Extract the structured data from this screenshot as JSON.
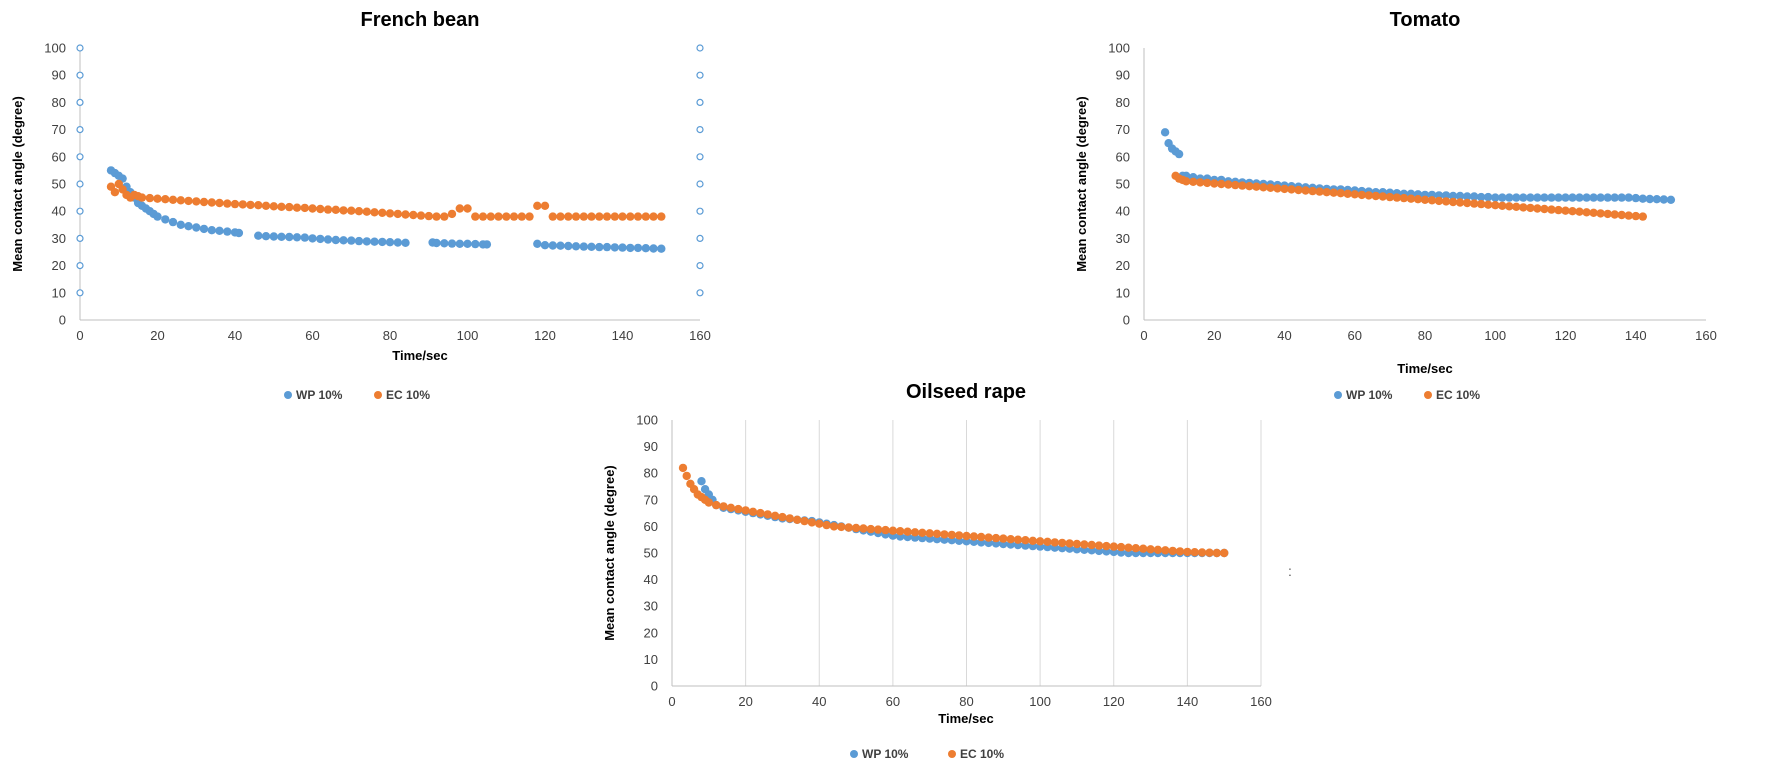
{
  "colors": {
    "wp": "#5b9bd5",
    "ec": "#ed7d31",
    "grid": "#d9d9d9",
    "axis": "#bfbfbf",
    "text": "#404040"
  },
  "stray_mark": ":",
  "chart_data": [
    {
      "type": "scatter",
      "title": "French bean",
      "xlabel": "Time/sec",
      "ylabel": "Mean contact angle (degree)",
      "xlim": [
        0,
        160
      ],
      "ylim": [
        0,
        100
      ],
      "x_ticks": [
        0,
        20,
        40,
        60,
        80,
        100,
        120,
        140,
        160
      ],
      "y_ticks": [
        0,
        10,
        20,
        30,
        40,
        50,
        60,
        70,
        80,
        90,
        100
      ],
      "grid": "none",
      "secondary_axis_markers": true,
      "legend": "bottom",
      "series": [
        {
          "name": "WP 10%",
          "color": "#5b9bd5",
          "x": [
            8,
            9,
            10,
            11,
            12,
            13,
            14,
            15,
            16,
            17,
            18,
            19,
            20,
            22,
            24,
            26,
            28,
            30,
            32,
            34,
            36,
            38,
            40,
            41,
            46,
            48,
            50,
            52,
            54,
            56,
            58,
            60,
            62,
            64,
            66,
            68,
            70,
            72,
            74,
            76,
            78,
            80,
            82,
            84,
            91,
            92,
            94,
            96,
            98,
            100,
            102,
            104,
            105,
            118,
            120,
            122,
            124,
            126,
            128,
            130,
            132,
            134,
            136,
            138,
            140,
            142,
            144,
            146,
            148,
            150
          ],
          "y": [
            55,
            54,
            53,
            52,
            49,
            47,
            45,
            43,
            42,
            41,
            40,
            39,
            38,
            37,
            36,
            35,
            34.5,
            34,
            33.5,
            33,
            32.8,
            32.5,
            32.2,
            32,
            31,
            30.8,
            30.7,
            30.6,
            30.5,
            30.4,
            30.3,
            30,
            29.8,
            29.6,
            29.4,
            29.3,
            29.2,
            29,
            28.9,
            28.8,
            28.7,
            28.6,
            28.5,
            28.4,
            28.5,
            28.3,
            28.2,
            28.1,
            28,
            28,
            27.9,
            27.8,
            27.8,
            28,
            27.5,
            27.4,
            27.3,
            27.2,
            27.1,
            27,
            26.9,
            26.8,
            26.8,
            26.7,
            26.6,
            26.5,
            26.5,
            26.4,
            26.3,
            26.2
          ]
        },
        {
          "name": "EC 10%",
          "color": "#ed7d31",
          "x": [
            8,
            9,
            10,
            11,
            12,
            13,
            14,
            15,
            16,
            18,
            20,
            22,
            24,
            26,
            28,
            30,
            32,
            34,
            36,
            38,
            40,
            42,
            44,
            46,
            48,
            50,
            52,
            54,
            56,
            58,
            60,
            62,
            64,
            66,
            68,
            70,
            72,
            74,
            76,
            78,
            80,
            82,
            84,
            86,
            88,
            90,
            92,
            94,
            96,
            98,
            100,
            102,
            104,
            106,
            108,
            110,
            112,
            114,
            116,
            118,
            120,
            122,
            124,
            126,
            128,
            130,
            132,
            134,
            136,
            138,
            140,
            142,
            144,
            146,
            148,
            150
          ],
          "y": [
            49,
            47,
            50,
            48,
            46,
            45,
            46,
            45.5,
            45,
            44.8,
            44.6,
            44.4,
            44.2,
            44,
            43.8,
            43.6,
            43.4,
            43.2,
            43,
            42.8,
            42.6,
            42.5,
            42.3,
            42.2,
            42,
            41.8,
            41.6,
            41.5,
            41.3,
            41.2,
            41,
            40.8,
            40.6,
            40.5,
            40.3,
            40.2,
            40,
            39.8,
            39.6,
            39.4,
            39.2,
            39,
            38.8,
            38.6,
            38.4,
            38.2,
            38,
            38,
            39,
            41,
            41,
            38,
            38,
            38,
            38,
            38,
            38,
            38,
            38,
            42,
            42,
            38,
            38,
            38,
            38,
            38,
            38,
            38,
            38,
            38,
            38,
            38,
            38,
            38,
            38,
            38
          ]
        }
      ]
    },
    {
      "type": "scatter",
      "title": "Tomato",
      "xlabel": "Time/sec",
      "ylabel": "Mean contact angle (degree)",
      "xlim": [
        0,
        160
      ],
      "ylim": [
        0,
        100
      ],
      "x_ticks": [
        0,
        20,
        40,
        60,
        80,
        100,
        120,
        140,
        160
      ],
      "y_ticks": [
        0,
        10,
        20,
        30,
        40,
        50,
        60,
        70,
        80,
        90,
        100
      ],
      "grid": "none",
      "legend": "bottom",
      "series": [
        {
          "name": "WP 10%",
          "color": "#5b9bd5",
          "x": [
            6,
            7,
            8,
            9,
            10,
            11,
            12,
            14,
            16,
            18,
            20,
            22,
            24,
            26,
            28,
            30,
            32,
            34,
            36,
            38,
            40,
            42,
            44,
            46,
            48,
            50,
            52,
            54,
            56,
            58,
            60,
            62,
            64,
            66,
            68,
            70,
            72,
            74,
            76,
            78,
            80,
            82,
            84,
            86,
            88,
            90,
            92,
            94,
            96,
            98,
            100,
            102,
            104,
            106,
            108,
            110,
            112,
            114,
            116,
            118,
            120,
            122,
            124,
            126,
            128,
            130,
            132,
            134,
            136,
            138,
            140,
            142,
            144,
            146,
            148,
            150
          ],
          "y": [
            69,
            65,
            63,
            62,
            61,
            53,
            53,
            52.5,
            52,
            52,
            51.5,
            51.5,
            51,
            50.8,
            50.6,
            50.4,
            50.2,
            50,
            49.8,
            49.6,
            49.4,
            49.2,
            49,
            48.8,
            48.6,
            48.4,
            48.2,
            48,
            48,
            47.8,
            47.6,
            47.4,
            47.2,
            47,
            47,
            46.8,
            46.6,
            46.4,
            46.4,
            46.2,
            46,
            46,
            45.8,
            45.8,
            45.6,
            45.6,
            45.4,
            45.4,
            45.2,
            45.2,
            45,
            45,
            45,
            45,
            45,
            45,
            45,
            45,
            45,
            45,
            45,
            45,
            45,
            45,
            45,
            45,
            45,
            45,
            45,
            45,
            44.8,
            44.6,
            44.5,
            44.4,
            44.3,
            44.2
          ]
        },
        {
          "name": "EC 10%",
          "color": "#ed7d31",
          "x": [
            9,
            10,
            11,
            12,
            14,
            16,
            18,
            20,
            22,
            24,
            26,
            28,
            30,
            32,
            34,
            36,
            38,
            40,
            42,
            44,
            46,
            48,
            50,
            52,
            54,
            56,
            58,
            60,
            62,
            64,
            66,
            68,
            70,
            72,
            74,
            76,
            78,
            80,
            82,
            84,
            86,
            88,
            90,
            92,
            94,
            96,
            98,
            100,
            102,
            104,
            106,
            108,
            110,
            112,
            114,
            116,
            118,
            120,
            122,
            124,
            126,
            128,
            130,
            132,
            134,
            136,
            138,
            140,
            142
          ],
          "y": [
            53,
            52,
            51.5,
            51,
            50.8,
            50.6,
            50.4,
            50.2,
            50,
            49.8,
            49.6,
            49.4,
            49.2,
            49,
            48.8,
            48.6,
            48.4,
            48.2,
            48,
            47.8,
            47.6,
            47.4,
            47.2,
            47,
            46.8,
            46.6,
            46.4,
            46.2,
            46,
            45.8,
            45.6,
            45.4,
            45.2,
            45,
            44.8,
            44.6,
            44.4,
            44.2,
            44,
            43.8,
            43.6,
            43.4,
            43.2,
            43,
            42.8,
            42.6,
            42.4,
            42.2,
            42,
            41.8,
            41.6,
            41.4,
            41.2,
            41,
            40.8,
            40.6,
            40.4,
            40.2,
            40,
            39.8,
            39.6,
            39.4,
            39.2,
            39,
            38.8,
            38.6,
            38.4,
            38.2,
            38
          ]
        }
      ]
    },
    {
      "type": "scatter",
      "title": "Oilseed rape",
      "xlabel": "Time/sec",
      "ylabel": "Mean contact angle (degree)",
      "xlim": [
        0,
        160
      ],
      "ylim": [
        0,
        100
      ],
      "x_ticks": [
        0,
        20,
        40,
        60,
        80,
        100,
        120,
        140,
        160
      ],
      "y_ticks": [
        0,
        10,
        20,
        30,
        40,
        50,
        60,
        70,
        80,
        90,
        100
      ],
      "grid": "vertical",
      "legend": "bottom",
      "series": [
        {
          "name": "WP 10%",
          "color": "#5b9bd5",
          "x": [
            8,
            9,
            10,
            11,
            12,
            14,
            16,
            18,
            20,
            22,
            24,
            26,
            28,
            30,
            32,
            34,
            36,
            38,
            40,
            42,
            44,
            46,
            48,
            50,
            52,
            54,
            56,
            58,
            60,
            62,
            64,
            66,
            68,
            70,
            72,
            74,
            76,
            78,
            80,
            82,
            84,
            86,
            88,
            90,
            92,
            94,
            96,
            98,
            100,
            102,
            104,
            106,
            108,
            110,
            112,
            114,
            116,
            118,
            120,
            122,
            124,
            126,
            128,
            130,
            132,
            134,
            136,
            138,
            140,
            142,
            144,
            146,
            148,
            150
          ],
          "y": [
            77,
            74,
            72,
            70,
            68,
            67,
            66.5,
            66,
            65.5,
            65,
            64.5,
            64,
            63.5,
            63,
            62.8,
            62.5,
            62.2,
            62,
            61.5,
            61,
            60.5,
            60,
            59.5,
            59,
            58.5,
            58,
            57.5,
            57,
            56.5,
            56.2,
            56,
            55.8,
            55.6,
            55.4,
            55.2,
            55,
            54.8,
            54.6,
            54.4,
            54.2,
            54,
            53.8,
            53.6,
            53.4,
            53.2,
            53,
            52.8,
            52.6,
            52.4,
            52.2,
            52,
            51.8,
            51.6,
            51.4,
            51.2,
            51,
            50.8,
            50.6,
            50.4,
            50.2,
            50,
            50,
            50,
            50,
            50,
            50,
            50,
            50,
            50,
            50,
            50,
            50,
            50,
            50
          ]
        },
        {
          "name": "EC 10%",
          "color": "#ed7d31",
          "x": [
            3,
            4,
            5,
            6,
            7,
            8,
            9,
            10,
            12,
            14,
            16,
            18,
            20,
            22,
            24,
            26,
            28,
            30,
            32,
            34,
            36,
            38,
            40,
            42,
            44,
            46,
            48,
            50,
            52,
            54,
            56,
            58,
            60,
            62,
            64,
            66,
            68,
            70,
            72,
            74,
            76,
            78,
            80,
            82,
            84,
            86,
            88,
            90,
            92,
            94,
            96,
            98,
            100,
            102,
            104,
            106,
            108,
            110,
            112,
            114,
            116,
            118,
            120,
            122,
            124,
            126,
            128,
            130,
            132,
            134,
            136,
            138,
            140,
            142,
            144,
            146,
            148,
            150
          ],
          "y": [
            82,
            79,
            76,
            74,
            72,
            71,
            70,
            69,
            68,
            67.5,
            67,
            66.5,
            66,
            65.5,
            65,
            64.5,
            64,
            63.5,
            63,
            62.5,
            62,
            61.5,
            61,
            60.5,
            60,
            59.8,
            59.6,
            59.4,
            59.2,
            59,
            58.8,
            58.6,
            58.4,
            58.2,
            58,
            57.8,
            57.6,
            57.4,
            57.2,
            57,
            56.8,
            56.6,
            56.4,
            56.2,
            56,
            55.8,
            55.6,
            55.4,
            55.2,
            55,
            54.8,
            54.6,
            54.4,
            54.2,
            54,
            53.8,
            53.6,
            53.4,
            53.2,
            53,
            52.8,
            52.6,
            52.4,
            52.2,
            52,
            51.8,
            51.6,
            51.4,
            51.2,
            51,
            50.8,
            50.6,
            50.4,
            50.3,
            50.2,
            50.1,
            50,
            50
          ]
        }
      ]
    }
  ]
}
